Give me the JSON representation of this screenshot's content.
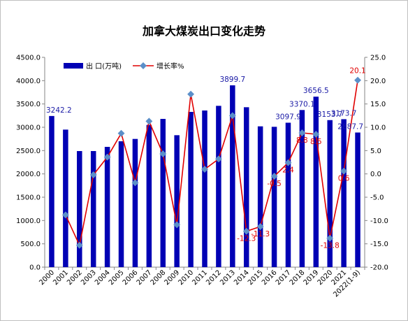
{
  "chart_data": {
    "type": "bar",
    "title": "加拿大煤炭出口变化走势",
    "categories": [
      "2000",
      "2001",
      "2002",
      "2003",
      "2004",
      "2005",
      "2006",
      "2007",
      "2008",
      "2009",
      "2010",
      "2011",
      "2012",
      "2013",
      "2014",
      "2015",
      "2016",
      "2017",
      "2018",
      "2019",
      "2020",
      "2021",
      "2022(1-9)"
    ],
    "series": [
      {
        "name": "出 口(万吨)",
        "type": "bar",
        "axis": "left",
        "color": "#0000b4",
        "values": [
          3242.2,
          2950,
          2490,
          2490,
          2580,
          2700,
          2750,
          3050,
          3180,
          2830,
          3330,
          3360,
          3460,
          3899.7,
          3430,
          3020,
          3010,
          3097.9,
          3370.1,
          3656.5,
          3153.7,
          3173.7,
          2887.7
        ]
      },
      {
        "name": "增长率%",
        "type": "line",
        "axis": "right",
        "color": "#e00000",
        "marker_color": "#5b8fc9",
        "values": [
          null,
          -8.8,
          -15.3,
          -0.2,
          3.6,
          8.7,
          -1.9,
          11.3,
          4.3,
          -10.9,
          17.1,
          1.0,
          3.2,
          12.5,
          -12.3,
          -11.3,
          -0.5,
          2.4,
          8.8,
          8.5,
          -13.8,
          0.6,
          20.1
        ]
      }
    ],
    "bar_labels": [
      {
        "index": 0,
        "text": "3242.2"
      },
      {
        "index": 13,
        "text": "3899.7"
      },
      {
        "index": 17,
        "text": "3097.9"
      },
      {
        "index": 18,
        "text": "3370.1"
      },
      {
        "index": 19,
        "text": "3656.5"
      },
      {
        "index": 20,
        "text": "3153.7"
      },
      {
        "index": 21,
        "text": "3173.7"
      },
      {
        "index": 22,
        "text": "2887.7"
      }
    ],
    "line_labels": [
      {
        "index": 14,
        "text": "-12.3"
      },
      {
        "index": 15,
        "text": "-11.3"
      },
      {
        "index": 16,
        "text": "-0.5"
      },
      {
        "index": 17,
        "text": "2.4"
      },
      {
        "index": 18,
        "text": "8.8"
      },
      {
        "index": 19,
        "text": "8.5"
      },
      {
        "index": 20,
        "text": "-13.8"
      },
      {
        "index": 21,
        "text": "0.6"
      },
      {
        "index": 22,
        "text": "20.1"
      }
    ],
    "y_left": {
      "min": 0,
      "max": 4500,
      "step": 500,
      "tick_format": "1dp"
    },
    "y_right": {
      "min": -20,
      "max": 25,
      "step": 5,
      "tick_format": "1dp"
    },
    "grid": false,
    "legend_position": "top-left"
  }
}
